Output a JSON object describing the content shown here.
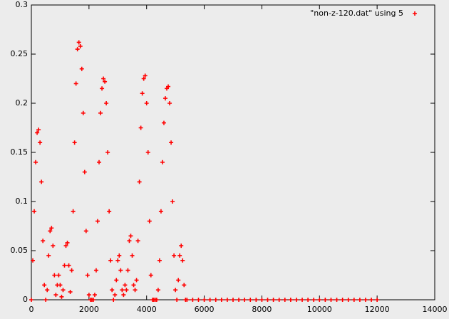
{
  "chart_data": {
    "type": "scatter",
    "xlim": [
      0,
      14000
    ],
    "ylim": [
      0,
      0.3
    ],
    "xticks": [
      0,
      2000,
      4000,
      6000,
      8000,
      10000,
      12000,
      14000
    ],
    "yticks": [
      0,
      0.05,
      0.1,
      0.15,
      0.2,
      0.25,
      0.3
    ],
    "legend": "top-right",
    "series": [
      {
        "name": "\"non-z-120.dat\" using 5",
        "color": "#ff0000",
        "x": [
          0,
          50,
          100,
          150,
          200,
          250,
          300,
          350,
          400,
          450,
          500,
          550,
          600,
          650,
          700,
          750,
          800,
          850,
          900,
          950,
          1000,
          1050,
          1100,
          1150,
          1200,
          1250,
          1300,
          1350,
          1400,
          1450,
          1500,
          1550,
          1600,
          1650,
          1700,
          1750,
          1800,
          1850,
          1900,
          1950,
          2000,
          2050,
          2100,
          2150,
          2200,
          2250,
          2300,
          2350,
          2400,
          2450,
          2500,
          2550,
          2600,
          2650,
          2700,
          2750,
          2800,
          2850,
          2900,
          2950,
          3000,
          3050,
          3100,
          3150,
          3200,
          3250,
          3300,
          3350,
          3400,
          3450,
          3500,
          3550,
          3600,
          3650,
          3700,
          3750,
          3800,
          3850,
          3900,
          3950,
          4000,
          4050,
          4100,
          4150,
          4200,
          4250,
          4300,
          4350,
          4400,
          4450,
          4500,
          4550,
          4600,
          4650,
          4700,
          4750,
          4800,
          4850,
          4900,
          4950,
          5000,
          5050,
          5100,
          5150,
          5200,
          5250,
          5300,
          5350,
          5400,
          5600,
          5800,
          6000,
          6200,
          6400,
          6600,
          6800,
          7000,
          7200,
          7400,
          7600,
          7800,
          8000,
          8200,
          8400,
          8600,
          8800,
          9000,
          9200,
          9400,
          9600,
          9800,
          10000,
          10200,
          10400,
          10600,
          10800,
          11000,
          11200,
          11400,
          11600,
          11800,
          12000
        ],
        "values": [
          0,
          0.04,
          0.09,
          0.14,
          0.17,
          0.173,
          0.16,
          0.12,
          0.06,
          0.015,
          0,
          0.01,
          0.045,
          0.07,
          0.073,
          0.055,
          0.025,
          0.005,
          0.015,
          0.025,
          0.015,
          0.003,
          0.01,
          0.035,
          0.055,
          0.058,
          0.035,
          0.008,
          0.03,
          0.09,
          0.16,
          0.22,
          0.255,
          0.262,
          0.258,
          0.235,
          0.19,
          0.13,
          0.07,
          0.025,
          0.005,
          0,
          0,
          0,
          0.005,
          0.03,
          0.08,
          0.14,
          0.19,
          0.215,
          0.225,
          0.222,
          0.2,
          0.15,
          0.09,
          0.04,
          0.01,
          0,
          0.005,
          0.02,
          0.04,
          0.045,
          0.03,
          0.01,
          0.005,
          0.015,
          0.01,
          0.03,
          0.06,
          0.065,
          0.045,
          0.015,
          0.01,
          0.02,
          0.06,
          0.12,
          0.175,
          0.21,
          0.225,
          0.228,
          0.2,
          0.15,
          0.08,
          0.025,
          0,
          0,
          0,
          0,
          0.01,
          0.04,
          0.09,
          0.14,
          0.18,
          0.205,
          0.215,
          0.217,
          0.2,
          0.16,
          0.1,
          0.045,
          0.01,
          0,
          0.02,
          0.045,
          0.055,
          0.04,
          0.015,
          0,
          0,
          0,
          0,
          0,
          0,
          0,
          0,
          0,
          0,
          0,
          0,
          0,
          0,
          0,
          0,
          0,
          0,
          0,
          0,
          0,
          0,
          0,
          0,
          0,
          0,
          0,
          0,
          0,
          0,
          0,
          0,
          0,
          0,
          0
        ]
      }
    ]
  }
}
